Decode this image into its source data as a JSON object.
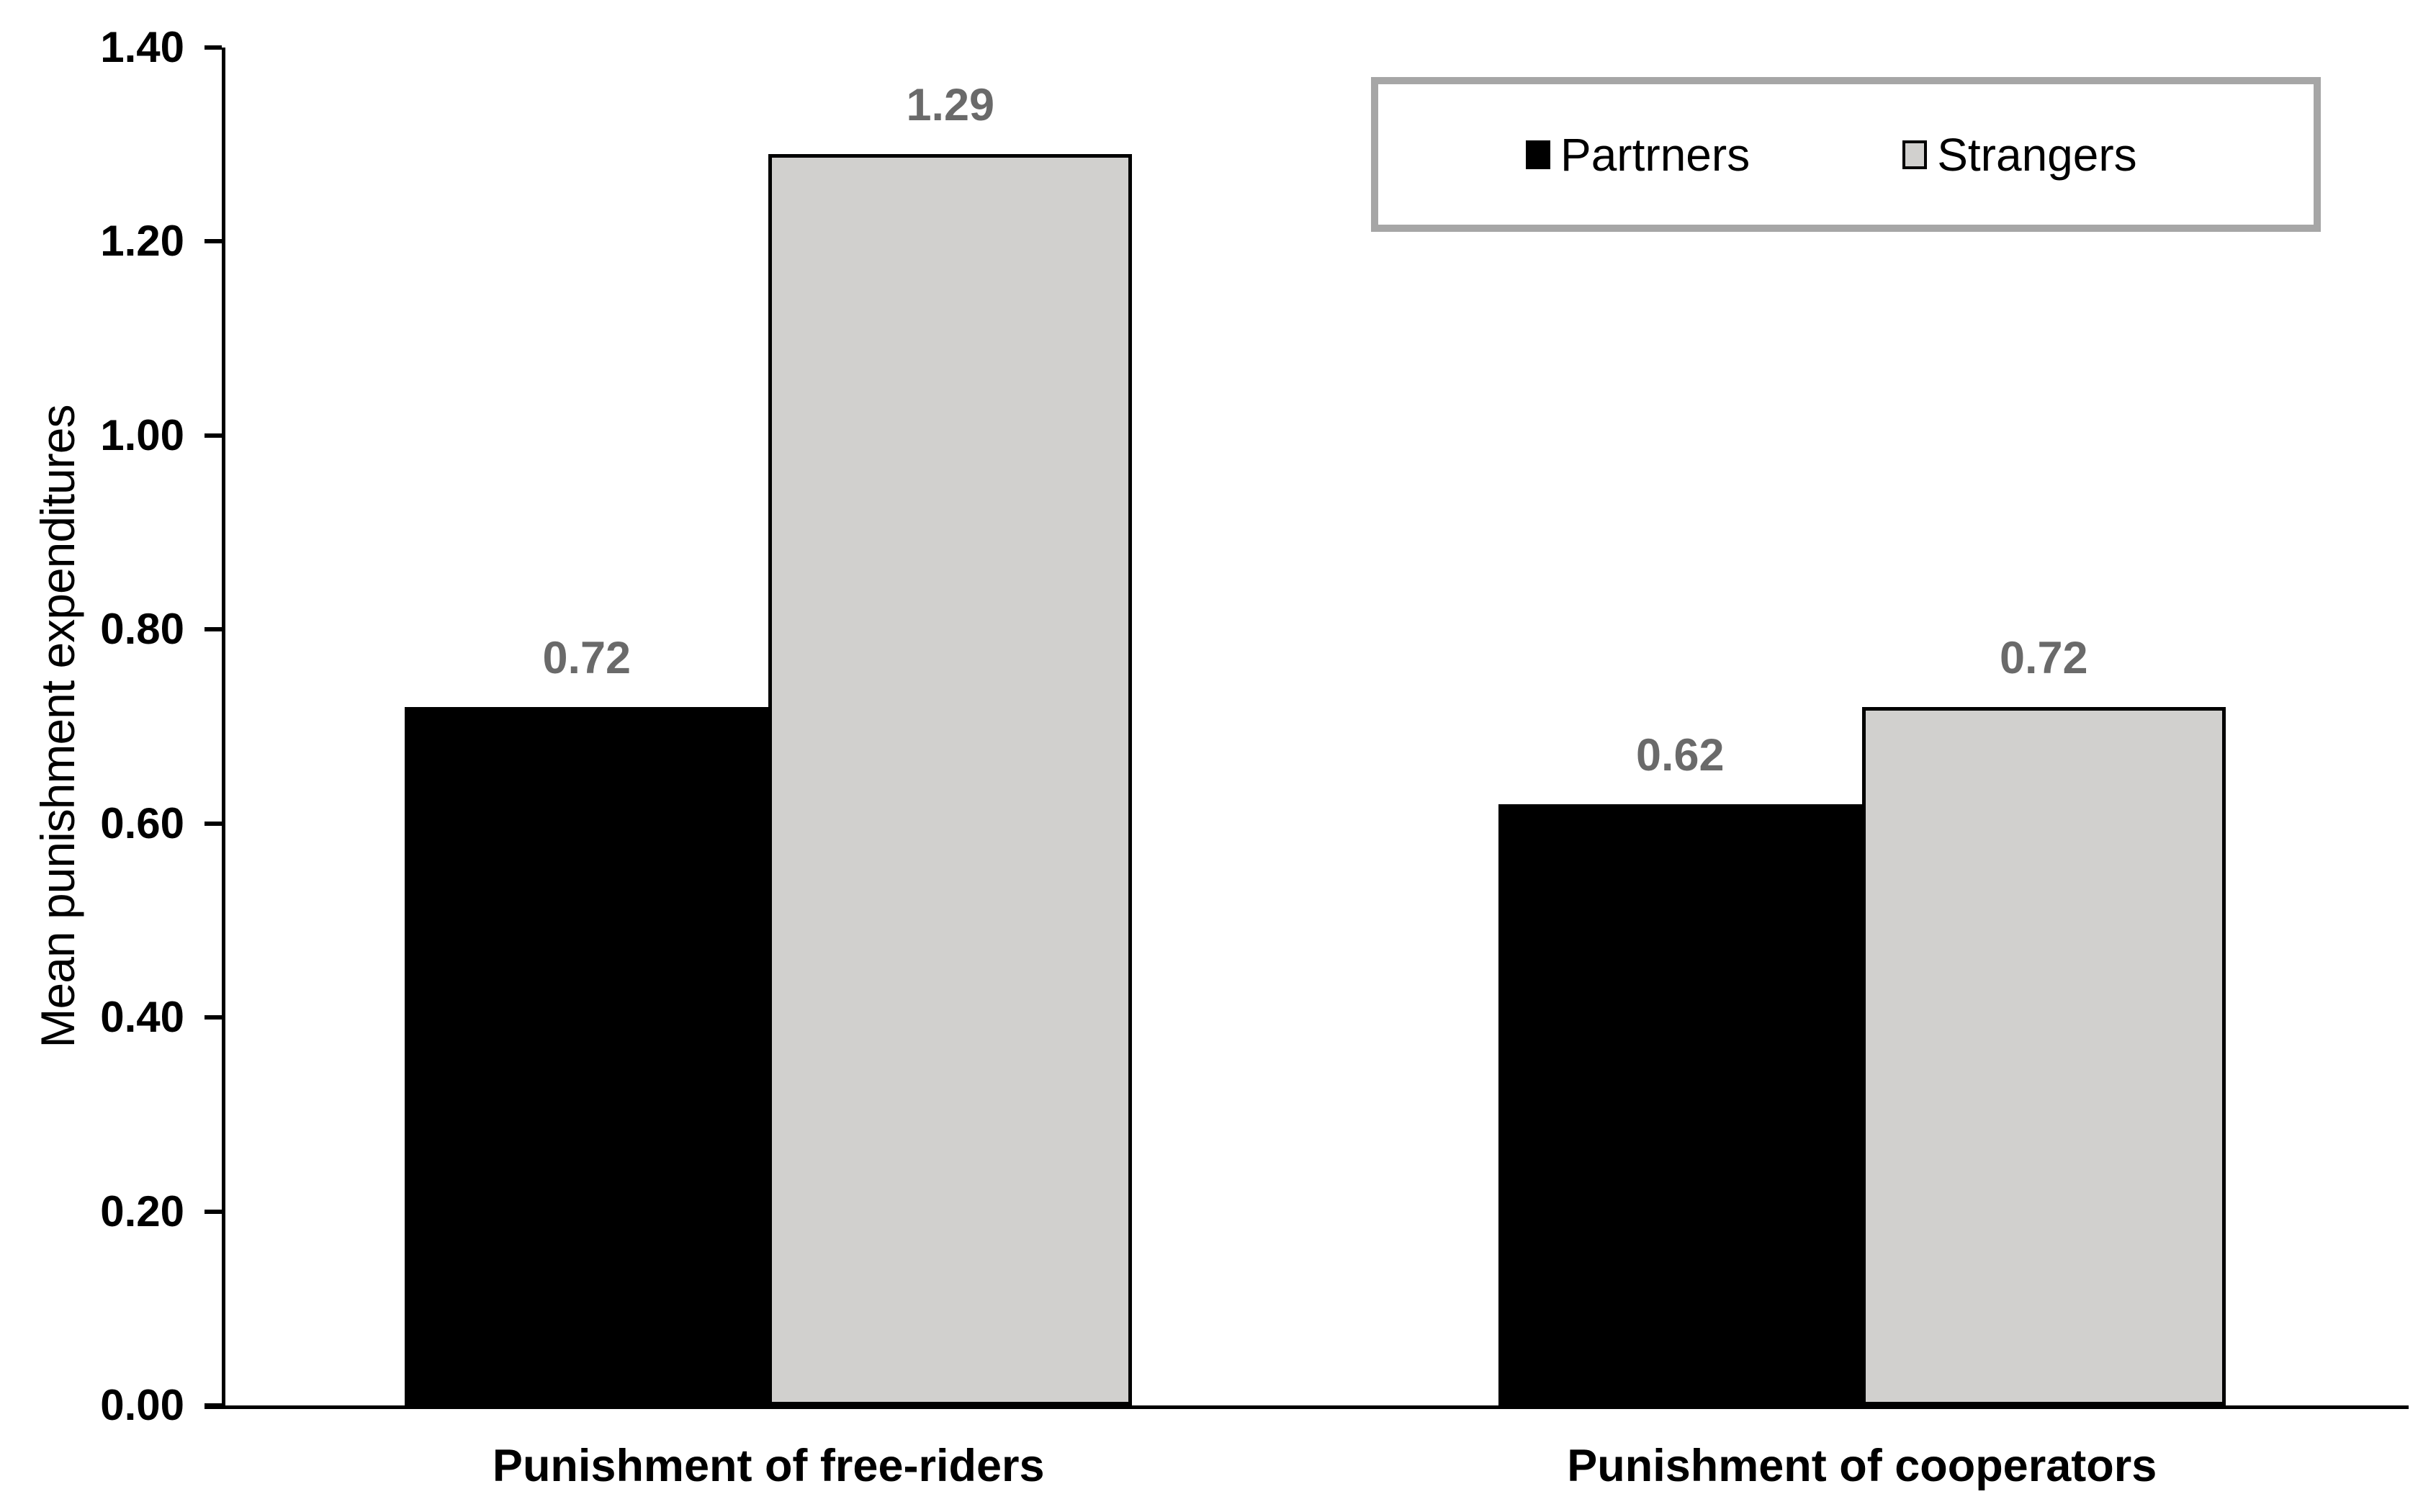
{
  "chart_data": {
    "type": "bar",
    "title": "",
    "categories": [
      "Punishment of free-riders",
      "Punishment of cooperators"
    ],
    "series": [
      {
        "name": "Partrners",
        "values": [
          0.72,
          0.62
        ],
        "labels": [
          "0.72",
          "0.62"
        ],
        "color": "#000000",
        "border_color": "#000000"
      },
      {
        "name": "Strangers",
        "values": [
          1.29,
          0.72
        ],
        "labels": [
          "1.29",
          "0.72"
        ],
        "color": "#d1d0ce",
        "border_color": "#000000"
      }
    ],
    "xlabel": "",
    "ylabel": "Mean punishment expenditures",
    "ylim": [
      0,
      1.4
    ],
    "ytick_step": 0.2,
    "yticks": [
      "0.00",
      "0.20",
      "0.40",
      "0.60",
      "0.80",
      "1.00",
      "1.20",
      "1.40"
    ],
    "grid": false,
    "legend_position": "top-right",
    "colors": {
      "data_label": "#6a6a6a",
      "axis": "#000000",
      "legend_border": "#a6a6a6",
      "background": "#ffffff"
    }
  }
}
